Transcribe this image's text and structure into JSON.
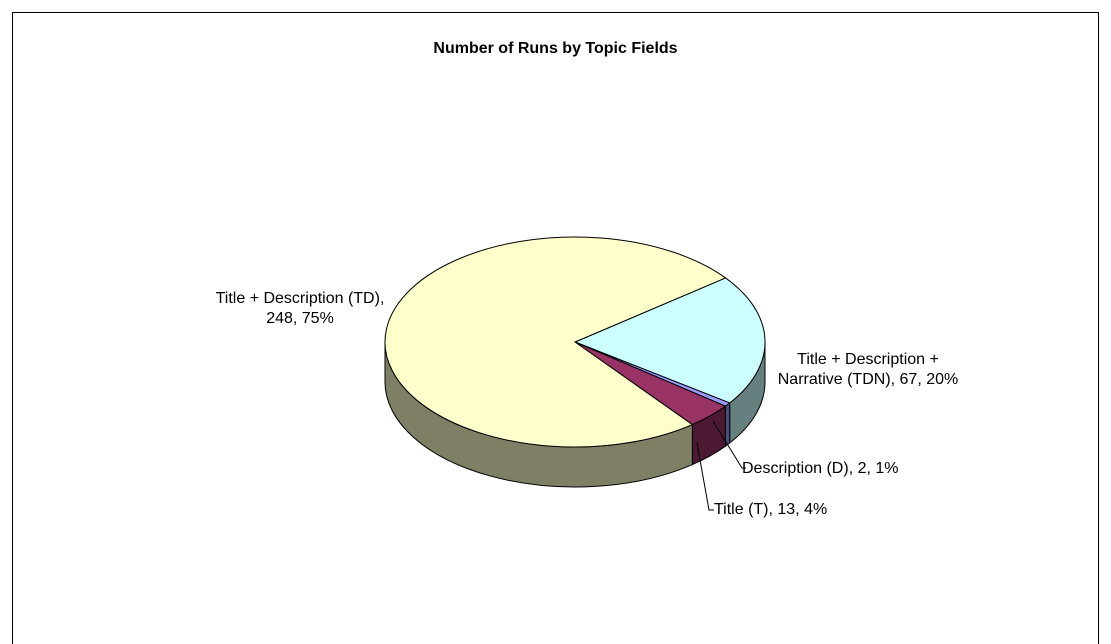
{
  "chart_data": {
    "type": "pie3d",
    "title": "Number of Runs by Topic Fields",
    "values": [
      67,
      2,
      13,
      248
    ],
    "value_labels": [
      "Title + Description + Narrative (TDN), 67, 20%",
      "Description (D), 2, 1%",
      "Title (T), 13, 4%",
      "Title + Description (TD), 248, 75%"
    ],
    "colors": [
      "#CCFFFF",
      "#9999FF",
      "#993366",
      "#FFFFCC"
    ]
  }
}
